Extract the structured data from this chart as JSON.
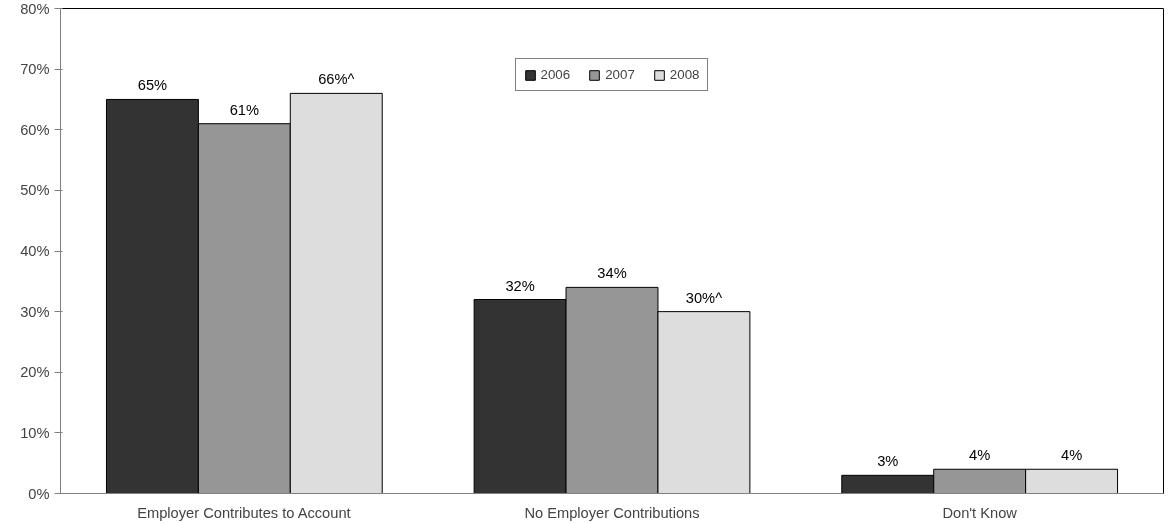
{
  "chart_data": {
    "type": "bar",
    "categories": [
      "Employer Contributes to Account",
      "No Employer Contributions",
      "Don't Know"
    ],
    "series": [
      {
        "name": "2006",
        "color": "#333333",
        "values": [
          65,
          32,
          3
        ],
        "value_labels": [
          "65%",
          "32%",
          "3%"
        ]
      },
      {
        "name": "2007",
        "color": "#969696",
        "values": [
          61,
          34,
          4
        ],
        "value_labels": [
          "61%",
          "34%",
          "4%"
        ]
      },
      {
        "name": "2008",
        "color": "#dddddd",
        "values": [
          66,
          30,
          4
        ],
        "value_labels": [
          "66%^",
          "30%^",
          "4%"
        ]
      }
    ],
    "ylim": [
      0,
      80
    ],
    "yticks": [
      {
        "value": 0,
        "label": "0%"
      },
      {
        "value": 10,
        "label": "10%"
      },
      {
        "value": 20,
        "label": "20%"
      },
      {
        "value": 30,
        "label": "30%"
      },
      {
        "value": 40,
        "label": "40%"
      },
      {
        "value": 50,
        "label": "50%"
      },
      {
        "value": 60,
        "label": "60%"
      },
      {
        "value": 70,
        "label": "70%"
      },
      {
        "value": 80,
        "label": "80%"
      }
    ],
    "grid": false,
    "legend": "top"
  }
}
